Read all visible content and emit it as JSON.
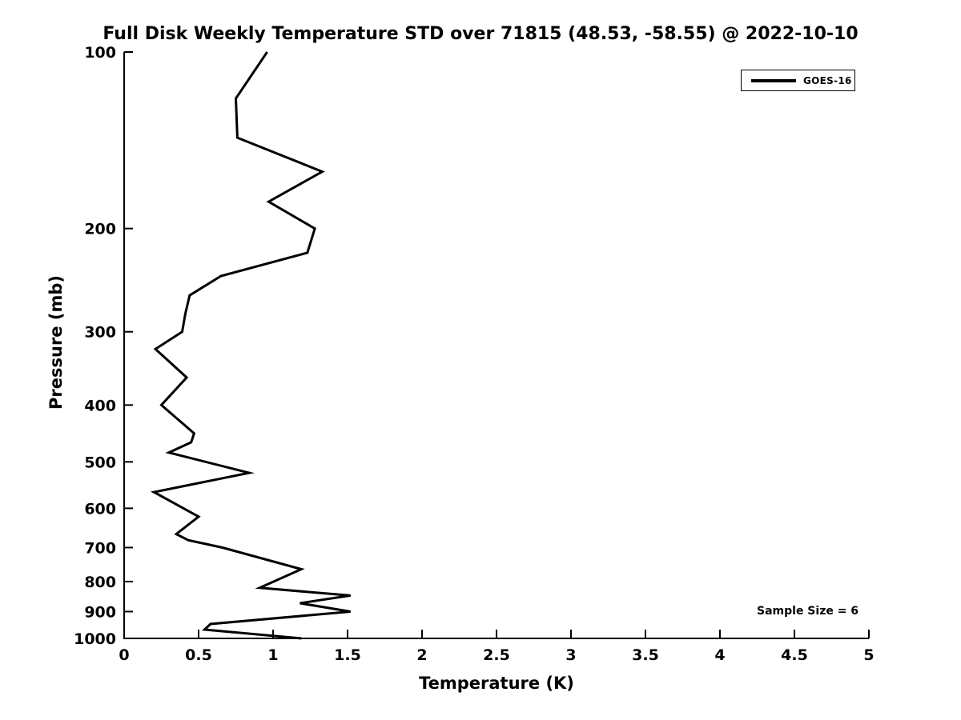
{
  "title": "Full Disk Weekly Temperature STD over 71815 (48.53, -58.55) @ 2022-10-10",
  "annotation": "Sample Size = 6",
  "colors": {
    "line": "#000000",
    "background": "#ffffff",
    "text": "#000000"
  },
  "chart_data": {
    "type": "line",
    "title": "Full Disk Weekly Temperature STD over 71815 (48.53, -58.55) @ 2022-10-10",
    "xlabel": "Temperature (K)",
    "ylabel": "Pressure (mb)",
    "xlim": [
      0,
      5
    ],
    "ylim_pressure_top_to_bottom": [
      100,
      1000
    ],
    "yscale": "log",
    "grid": false,
    "x_ticks": [
      0,
      0.5,
      1,
      1.5,
      2,
      2.5,
      3,
      3.5,
      4,
      4.5,
      5
    ],
    "x_tick_labels": [
      "0",
      "0.5",
      "1",
      "1.5",
      "2",
      "2.5",
      "3",
      "3.5",
      "4",
      "4.5",
      "5"
    ],
    "y_ticks": [
      100,
      200,
      300,
      400,
      500,
      600,
      700,
      800,
      900,
      1000
    ],
    "y_tick_labels": [
      "100",
      "200",
      "300",
      "400",
      "500",
      "600",
      "700",
      "800",
      "900",
      "1000"
    ],
    "legend": {
      "position": "top-right",
      "entries": [
        {
          "label": "GOES-16",
          "color": "#000000"
        }
      ]
    },
    "annotations": [
      {
        "text": "Sample Size = 6",
        "location": "bottom-right"
      }
    ],
    "series": [
      {
        "name": "GOES-16",
        "color": "#000000",
        "line_width": 3,
        "points": [
          {
            "temperature_K": 0.96,
            "pressure_mb": 100
          },
          {
            "temperature_K": 0.75,
            "pressure_mb": 120
          },
          {
            "temperature_K": 0.76,
            "pressure_mb": 140
          },
          {
            "temperature_K": 1.33,
            "pressure_mb": 160
          },
          {
            "temperature_K": 0.97,
            "pressure_mb": 180
          },
          {
            "temperature_K": 1.28,
            "pressure_mb": 200
          },
          {
            "temperature_K": 1.23,
            "pressure_mb": 220
          },
          {
            "temperature_K": 0.65,
            "pressure_mb": 241
          },
          {
            "temperature_K": 0.44,
            "pressure_mb": 260
          },
          {
            "temperature_K": 0.41,
            "pressure_mb": 280
          },
          {
            "temperature_K": 0.39,
            "pressure_mb": 300
          },
          {
            "temperature_K": 0.21,
            "pressure_mb": 321
          },
          {
            "temperature_K": 0.42,
            "pressure_mb": 359
          },
          {
            "temperature_K": 0.25,
            "pressure_mb": 400
          },
          {
            "temperature_K": 0.47,
            "pressure_mb": 447
          },
          {
            "temperature_K": 0.45,
            "pressure_mb": 463
          },
          {
            "temperature_K": 0.3,
            "pressure_mb": 482
          },
          {
            "temperature_K": 0.84,
            "pressure_mb": 522
          },
          {
            "temperature_K": 0.2,
            "pressure_mb": 563
          },
          {
            "temperature_K": 0.5,
            "pressure_mb": 620
          },
          {
            "temperature_K": 0.35,
            "pressure_mb": 664
          },
          {
            "temperature_K": 0.43,
            "pressure_mb": 680
          },
          {
            "temperature_K": 0.66,
            "pressure_mb": 700
          },
          {
            "temperature_K": 1.19,
            "pressure_mb": 762
          },
          {
            "temperature_K": 0.91,
            "pressure_mb": 820
          },
          {
            "temperature_K": 1.52,
            "pressure_mb": 845
          },
          {
            "temperature_K": 1.18,
            "pressure_mb": 871
          },
          {
            "temperature_K": 1.52,
            "pressure_mb": 900
          },
          {
            "temperature_K": 0.58,
            "pressure_mb": 945
          },
          {
            "temperature_K": 0.54,
            "pressure_mb": 966
          },
          {
            "temperature_K": 1.19,
            "pressure_mb": 1000
          }
        ]
      }
    ]
  }
}
